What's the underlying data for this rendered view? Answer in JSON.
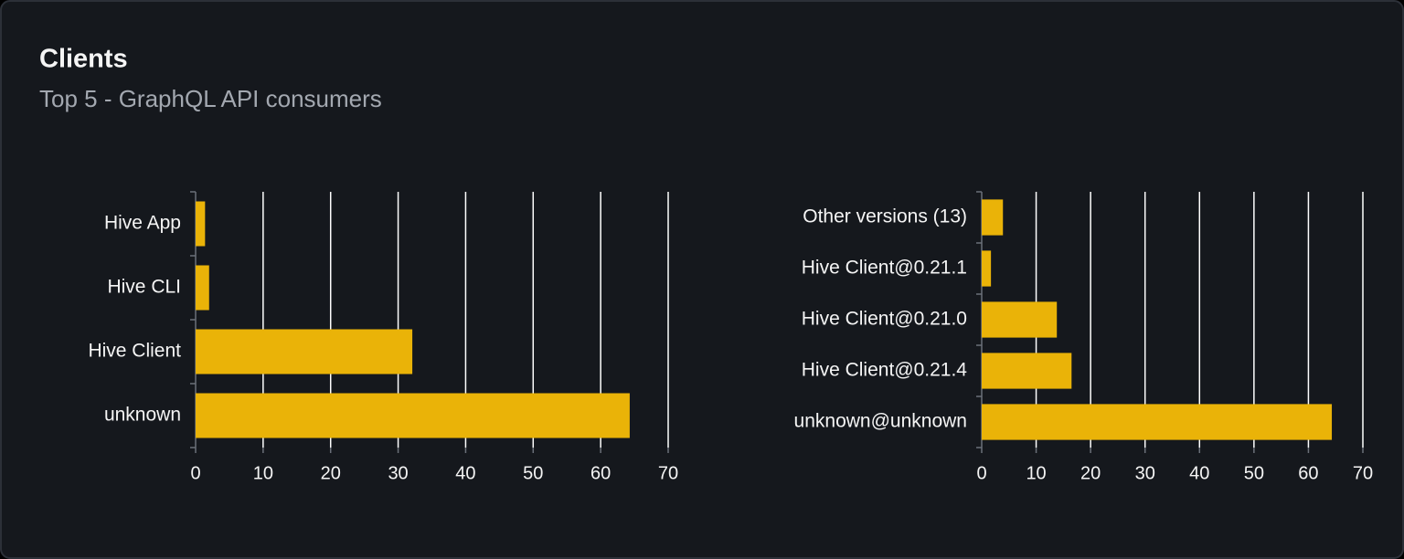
{
  "header": {
    "title": "Clients",
    "subtitle": "Top 5 - GraphQL API consumers"
  },
  "chart_data": [
    {
      "type": "hbar",
      "categories": [
        "Hive App",
        "Hive CLI",
        "Hive Client",
        "unknown"
      ],
      "values": [
        1.4,
        2,
        32.1,
        64.3
      ],
      "color": "#eab308",
      "xlim": [
        0,
        70
      ],
      "xticks": [
        0,
        10,
        20,
        30,
        40,
        50,
        60,
        70
      ],
      "grid": true
    },
    {
      "type": "hbar",
      "categories": [
        "Other versions (13)",
        "Hive Client@0.21.1",
        "Hive Client@0.21.0",
        "Hive Client@0.21.4",
        "unknown@unknown"
      ],
      "values": [
        3.9,
        1.7,
        13.8,
        16.5,
        64.3
      ],
      "color": "#eab308",
      "xlim": [
        0,
        70
      ],
      "xticks": [
        0,
        10,
        20,
        30,
        40,
        50,
        60,
        70
      ],
      "grid": true
    }
  ]
}
